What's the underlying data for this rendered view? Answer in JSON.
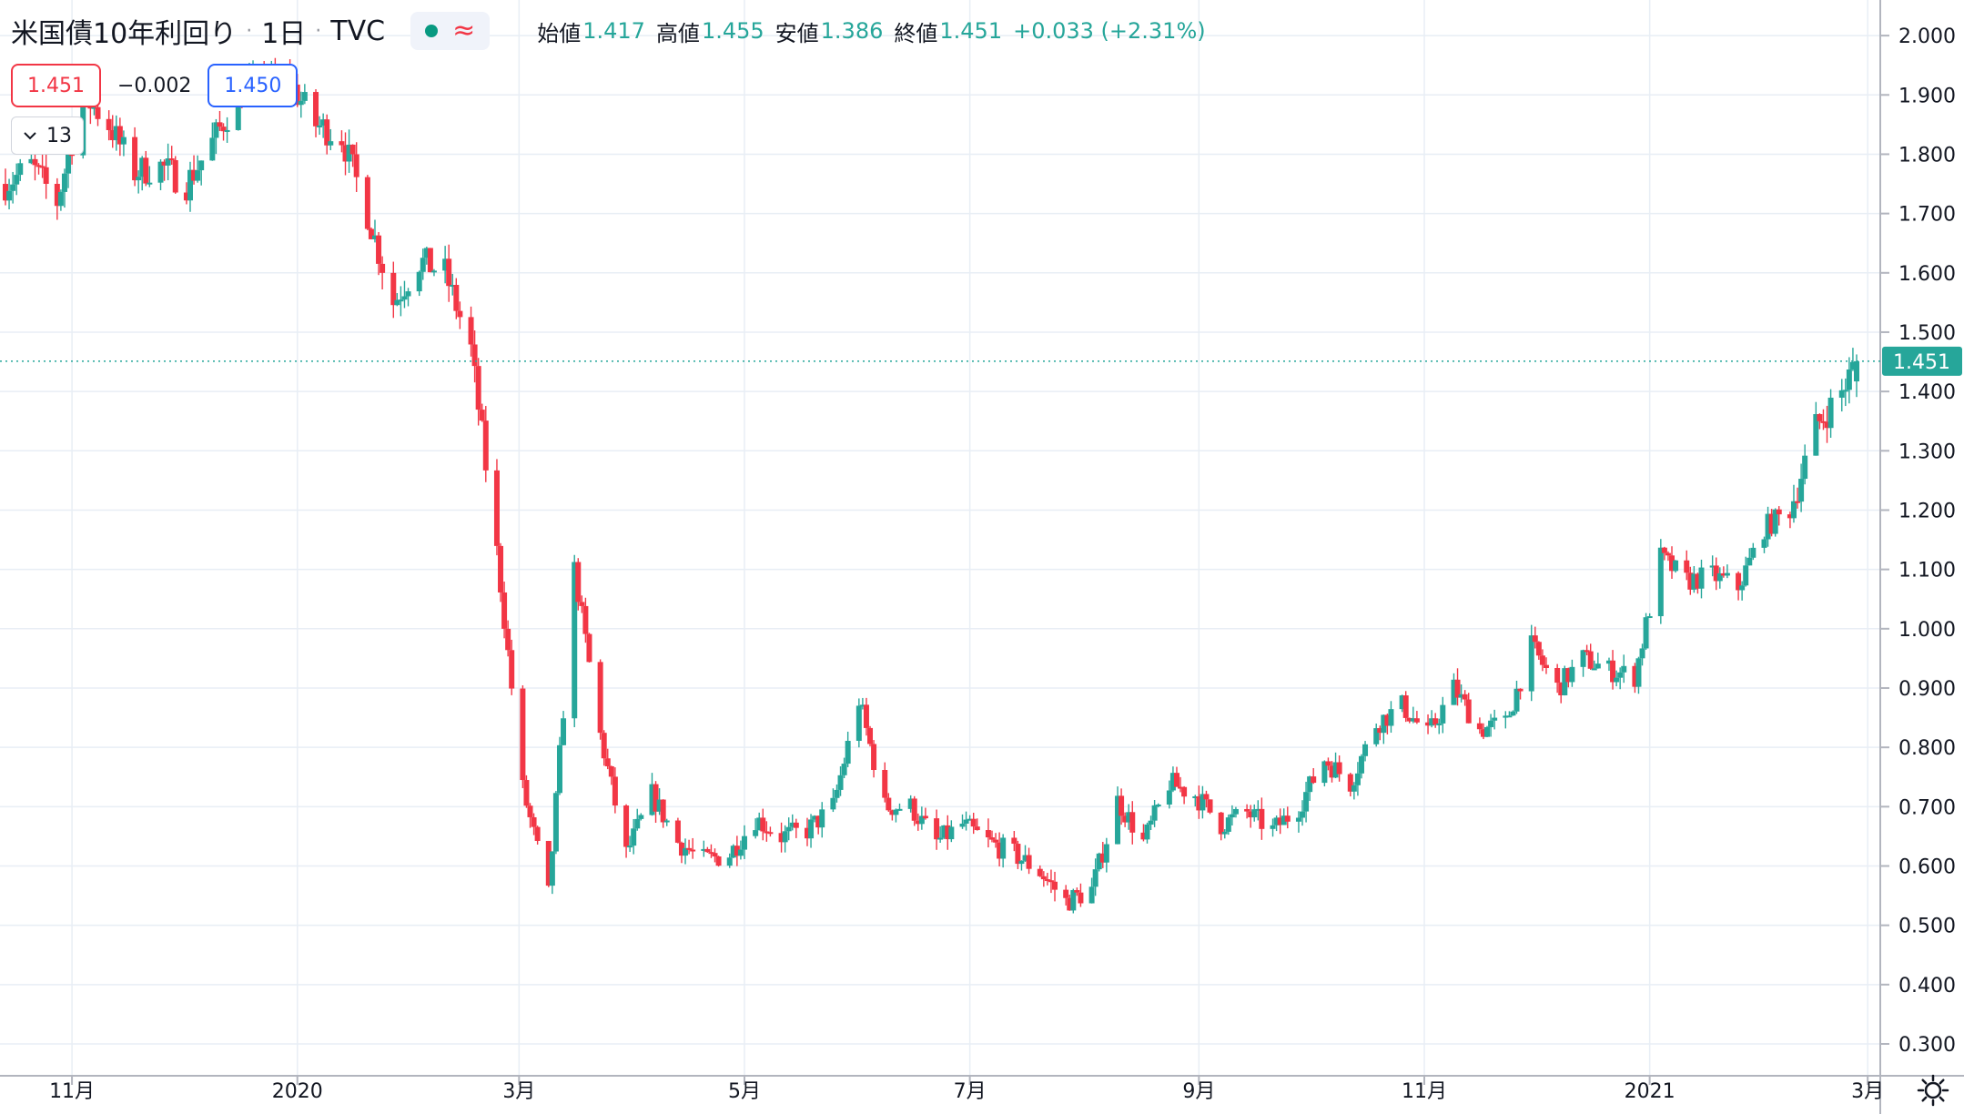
{
  "header": {
    "symbol": "米国債10年利回り",
    "interval": "1日",
    "source": "TVC",
    "approx_symbol": "≈",
    "ohlc": [
      {
        "label": "始値",
        "value": "1.417"
      },
      {
        "label": "高値",
        "value": "1.455"
      },
      {
        "label": "安値",
        "value": "1.386"
      },
      {
        "label": "終値",
        "value": "1.451"
      }
    ],
    "change": "+0.033 (+2.31%)"
  },
  "trade": {
    "sell": "1.451",
    "spread": "−0.002",
    "buy": "1.450"
  },
  "indicator_count": "13",
  "price_axis": {
    "ticks": [
      "2.000",
      "1.900",
      "1.800",
      "1.700",
      "1.600",
      "1.500",
      "1.400",
      "1.300",
      "1.200",
      "1.100",
      "1.000",
      "0.900",
      "0.800",
      "0.700",
      "0.600",
      "0.500",
      "0.400",
      "0.300"
    ],
    "last_price_label": "1.451"
  },
  "time_axis": {
    "labels": [
      "11月",
      "2020",
      "3月",
      "5月",
      "7月",
      "9月",
      "11月",
      "2021",
      "3月"
    ]
  },
  "colors": {
    "up": "#26a69a",
    "down": "#f23645",
    "grid": "#e8eef5",
    "text": "#131722"
  },
  "chart_data": {
    "type": "candlestick",
    "ylim": [
      0.28,
      2.05
    ],
    "last": 1.451,
    "x_ticks": [
      {
        "label": "11月",
        "date": "2019-11-01"
      },
      {
        "label": "2020",
        "date": "2020-01-01"
      },
      {
        "label": "3月",
        "date": "2020-03-01"
      },
      {
        "label": "5月",
        "date": "2020-05-01"
      },
      {
        "label": "7月",
        "date": "2020-07-01"
      },
      {
        "label": "9月",
        "date": "2020-09-01"
      },
      {
        "label": "11月",
        "date": "2020-11-01"
      },
      {
        "label": "2021",
        "date": "2021-01-01"
      },
      {
        "label": "3月",
        "date": "2021-03-01"
      }
    ],
    "close_path": [
      [
        "2019-10-14",
        1.75
      ],
      [
        "2019-10-21",
        1.78
      ],
      [
        "2019-10-28",
        1.72
      ],
      [
        "2019-11-04",
        1.9
      ],
      [
        "2019-11-11",
        1.85
      ],
      [
        "2019-11-18",
        1.77
      ],
      [
        "2019-11-25",
        1.78
      ],
      [
        "2019-12-02",
        1.75
      ],
      [
        "2019-12-09",
        1.82
      ],
      [
        "2019-12-16",
        1.9
      ],
      [
        "2019-12-23",
        1.92
      ],
      [
        "2019-12-30",
        1.92
      ],
      [
        "2020-01-06",
        1.85
      ],
      [
        "2020-01-13",
        1.83
      ],
      [
        "2020-01-20",
        1.7
      ],
      [
        "2020-01-27",
        1.55
      ],
      [
        "2020-02-03",
        1.62
      ],
      [
        "2020-02-10",
        1.6
      ],
      [
        "2020-02-17",
        1.47
      ],
      [
        "2020-02-24",
        1.13
      ],
      [
        "2020-03-02",
        0.73
      ],
      [
        "2020-03-09",
        0.55
      ],
      [
        "2020-03-16",
        1.1
      ],
      [
        "2020-03-23",
        0.82
      ],
      [
        "2020-03-30",
        0.62
      ],
      [
        "2020-04-06",
        0.72
      ],
      [
        "2020-04-13",
        0.64
      ],
      [
        "2020-04-20",
        0.61
      ],
      [
        "2020-04-27",
        0.62
      ],
      [
        "2020-05-04",
        0.68
      ],
      [
        "2020-05-11",
        0.65
      ],
      [
        "2020-05-18",
        0.66
      ],
      [
        "2020-05-25",
        0.7
      ],
      [
        "2020-06-01",
        0.88
      ],
      [
        "2020-06-08",
        0.7
      ],
      [
        "2020-06-15",
        0.7
      ],
      [
        "2020-06-22",
        0.64
      ],
      [
        "2020-06-29",
        0.67
      ],
      [
        "2020-07-06",
        0.64
      ],
      [
        "2020-07-13",
        0.62
      ],
      [
        "2020-07-20",
        0.59
      ],
      [
        "2020-07-27",
        0.54
      ],
      [
        "2020-08-03",
        0.56
      ],
      [
        "2020-08-10",
        0.71
      ],
      [
        "2020-08-17",
        0.64
      ],
      [
        "2020-08-24",
        0.74
      ],
      [
        "2020-08-31",
        0.72
      ],
      [
        "2020-09-07",
        0.67
      ],
      [
        "2020-09-14",
        0.69
      ],
      [
        "2020-09-21",
        0.66
      ],
      [
        "2020-09-28",
        0.7
      ],
      [
        "2020-10-05",
        0.78
      ],
      [
        "2020-10-12",
        0.74
      ],
      [
        "2020-10-19",
        0.84
      ],
      [
        "2020-10-26",
        0.87
      ],
      [
        "2020-11-02",
        0.82
      ],
      [
        "2020-11-09",
        0.9
      ],
      [
        "2020-11-16",
        0.83
      ],
      [
        "2020-11-23",
        0.84
      ],
      [
        "2020-11-30",
        0.97
      ],
      [
        "2020-12-07",
        0.9
      ],
      [
        "2020-12-14",
        0.95
      ],
      [
        "2020-12-21",
        0.93
      ],
      [
        "2020-12-28",
        0.92
      ],
      [
        "2021-01-04",
        1.12
      ],
      [
        "2021-01-11",
        1.08
      ],
      [
        "2021-01-18",
        1.09
      ],
      [
        "2021-01-25",
        1.07
      ],
      [
        "2021-02-01",
        1.17
      ],
      [
        "2021-02-08",
        1.2
      ],
      [
        "2021-02-15",
        1.34
      ],
      [
        "2021-02-22",
        1.4
      ],
      [
        "2021-02-26",
        1.451
      ]
    ]
  }
}
